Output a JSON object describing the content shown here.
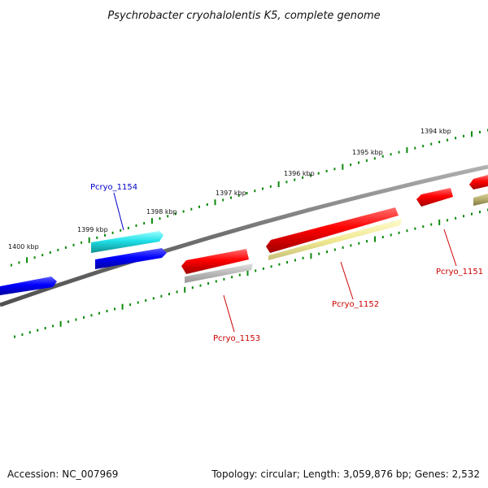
{
  "title": "Psychrobacter cryohalolentis K5, complete genome",
  "footer": {
    "accession": "Accession: NC_007969",
    "topology": "Topology: circular; Length: 3,059,876 bp; Genes: 2,532"
  },
  "scale_labels": [
    "1400 kbp",
    "1399 kbp",
    "1398 kbp",
    "1397 kbp",
    "1396 kbp",
    "1395 kbp",
    "1394 kbp"
  ],
  "gene_labels": [
    "Pcryo_1154",
    "Pcryo_1153",
    "Pcryo_1152",
    "Pcryo_1151"
  ],
  "colors": {
    "backbone": "#808080",
    "tick": "#0a8a0a",
    "label_blue": "#0000cc",
    "label_red": "#cc0000",
    "cds_red": "#ff0000",
    "cds_blue": "#0000ff",
    "cds_cyan": "#22e0e0",
    "cds_gray": "#b0b0b0",
    "cds_yellow": "#f0e890",
    "cds_olive": "#b8b070"
  }
}
